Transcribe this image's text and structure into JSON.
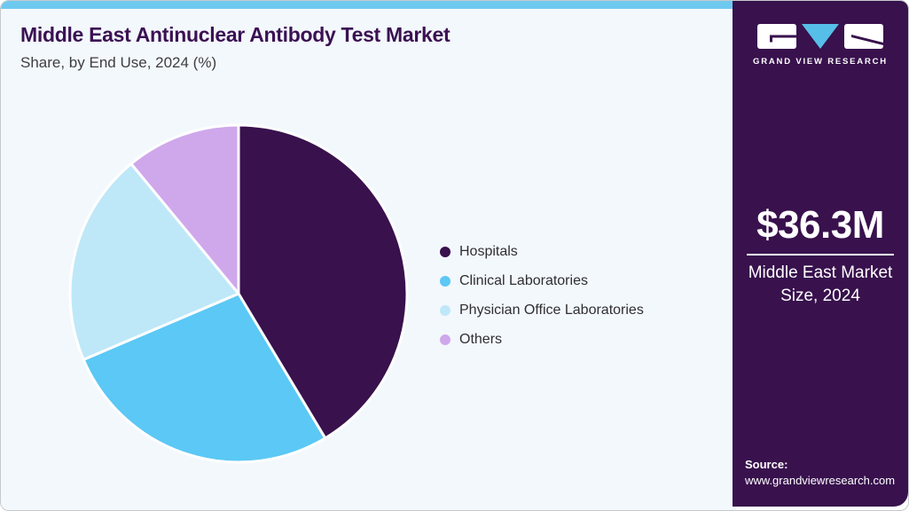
{
  "header": {
    "title": "Middle East Antinuclear Antibody Test Market",
    "subtitle": "Share, by End Use, 2024 (%)"
  },
  "chart_data": {
    "type": "pie",
    "title": "Middle East Antinuclear Antibody Test Market Share, by End Use, 2024 (%)",
    "unit": "%",
    "direction": "clockwise",
    "start_angle_deg": 0,
    "categories": [
      "Hospitals",
      "Clinical Laboratories",
      "Physician Office Laboratories",
      "Others"
    ],
    "values": [
      41.4,
      27.2,
      20.4,
      11.0
    ],
    "colors": [
      "#38114d",
      "#5bc8f5",
      "#bee8f8",
      "#cfa8ec"
    ],
    "legend_position": "right",
    "slice_border_color": "#ffffff"
  },
  "sidebar": {
    "logo_brand": "GRAND VIEW RESEARCH",
    "market_size_value": "$36.3M",
    "market_size_label": "Middle East Market Size, 2024",
    "source_label": "Source:",
    "source_url": "www.grandviewresearch.com"
  },
  "colors": {
    "accent_bar": "#6fc9ef",
    "sidebar_bg": "#38114d",
    "main_bg": "#f3f8fc",
    "title_text": "#3b1153",
    "logo_triangle": "#56bfe8"
  }
}
